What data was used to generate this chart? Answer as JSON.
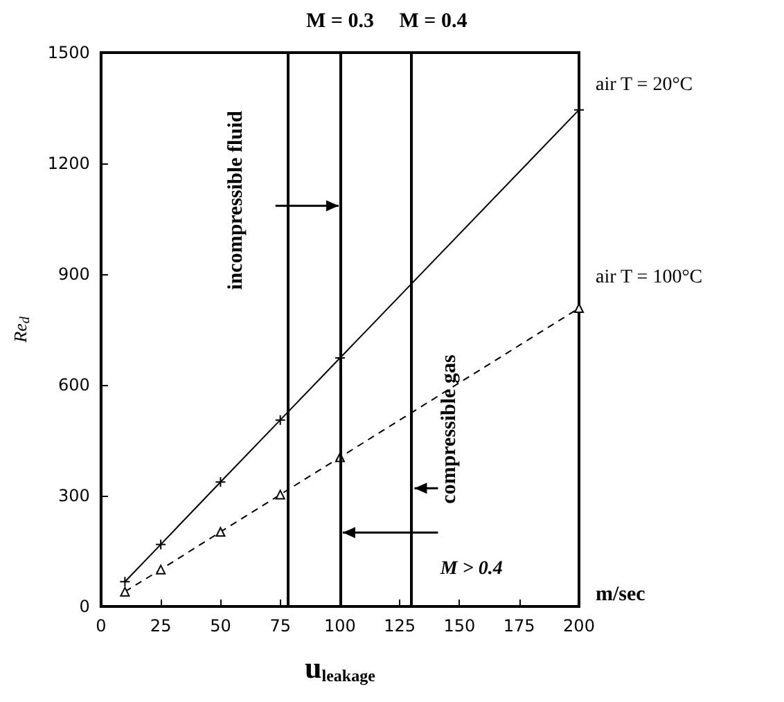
{
  "chart_data": {
    "type": "line",
    "xlabel": "u$_{leakage}$",
    "ylabel": "Re$_{d}$",
    "xlim": [
      0,
      200
    ],
    "xticks": [
      0,
      25,
      50,
      75,
      100,
      125,
      150,
      175,
      200
    ],
    "ylim": [
      0,
      1500
    ],
    "yticks": [
      0,
      300,
      600,
      900,
      1200,
      1500
    ],
    "grid": false,
    "series": [
      {
        "color": "#000000",
        "x": [
          10,
          25,
          50,
          75,
          100,
          200
        ],
        "values": [
          67,
          168,
          337,
          505,
          673,
          1345
        ],
        "marker": "cross",
        "line_style": "solid"
      },
      {
        "color": "#000000",
        "x": [
          10,
          25,
          50,
          75,
          100,
          200
        ],
        "values": [
          40,
          100,
          202,
          303,
          404,
          808
        ],
        "marker": "triangle",
        "line_style": "dashed"
      }
    ],
    "ref_lines": [
      {
        "axis": "x",
        "value": 78,
        "label": null,
        "color": "#000000",
        "line_style": "solid"
      },
      {
        "axis": "x",
        "value": 100,
        "label": null,
        "color": "#000000",
        "line_style": "solid"
      },
      {
        "axis": "x",
        "value": 130,
        "label": null,
        "color": "#000000",
        "line_style": "solid"
      }
    ],
    "annotations": [
      "air  T = 20°C",
      "air  T = 100°C",
      "incompressible fluid",
      "compressible gas",
      "M > 0.4",
      "m/sec",
      "M = 0.3",
      "M = 0.4"
    ]
  }
}
